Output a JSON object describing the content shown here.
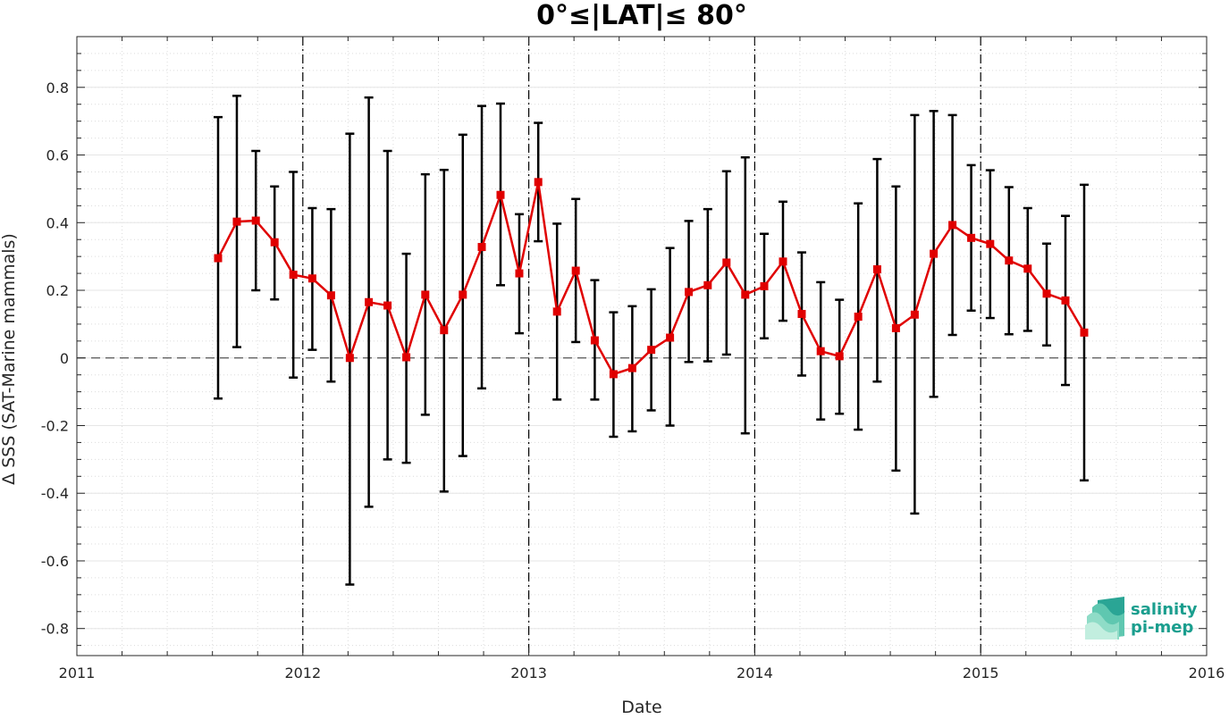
{
  "title": "0°≤|LAT|≤ 80°",
  "logo": {
    "line1": "salinity",
    "line2": "pi-mep",
    "color": "#1a9e8e"
  },
  "chart_data": {
    "type": "line",
    "title": "0°≤|LAT|≤ 80°",
    "xlabel": "Date",
    "ylabel": "Δ SSS (SAT-Marine mammals)",
    "xlim": [
      2011,
      2016
    ],
    "ylim": [
      -0.88,
      0.95
    ],
    "x_ticks": [
      2011,
      2012,
      2013,
      2014,
      2015,
      2016
    ],
    "x_tick_labels": [
      "2011",
      "2012",
      "2013",
      "2014",
      "2015",
      "2016"
    ],
    "y_ticks": [
      -0.8,
      -0.6,
      -0.4,
      -0.2,
      0,
      0.2,
      0.4,
      0.6,
      0.8
    ],
    "y_tick_labels": [
      "-0.8",
      "-0.6",
      "-0.4",
      "-0.2",
      "0",
      "0.2",
      "0.4",
      "0.6",
      "0.8"
    ],
    "grid": true,
    "year_boundaries": [
      2012,
      2013,
      2014,
      2015
    ],
    "zero_line": 0,
    "series": [
      {
        "color": "#e00000",
        "marker": "square",
        "errorbar_color": "#000000",
        "x": [
          2011.625,
          2011.708,
          2011.792,
          2011.875,
          2011.958,
          2012.042,
          2012.125,
          2012.208,
          2012.292,
          2012.375,
          2012.458,
          2012.542,
          2012.625,
          2012.708,
          2012.792,
          2012.875,
          2012.958,
          2013.042,
          2013.125,
          2013.208,
          2013.292,
          2013.375,
          2013.458,
          2013.542,
          2013.625,
          2013.708,
          2013.792,
          2013.875,
          2013.958,
          2014.042,
          2014.125,
          2014.208,
          2014.292,
          2014.375,
          2014.458,
          2014.542,
          2014.625,
          2014.708,
          2014.792,
          2014.875,
          2014.958,
          2015.042,
          2015.125,
          2015.208,
          2015.292,
          2015.375,
          2015.458
        ],
        "y": [
          0.295,
          0.403,
          0.406,
          0.342,
          0.246,
          0.235,
          0.185,
          0.0,
          0.165,
          0.155,
          0.002,
          0.187,
          0.082,
          0.187,
          0.328,
          0.482,
          0.25,
          0.52,
          0.137,
          0.258,
          0.052,
          -0.048,
          -0.03,
          0.024,
          0.06,
          0.195,
          0.215,
          0.282,
          0.187,
          0.212,
          0.285,
          0.13,
          0.02,
          0.005,
          0.122,
          0.262,
          0.088,
          0.128,
          0.308,
          0.393,
          0.355,
          0.337,
          0.288,
          0.264,
          0.19,
          0.17,
          0.075
        ],
        "y_low": [
          -0.12,
          0.032,
          0.2,
          0.173,
          -0.058,
          0.024,
          -0.07,
          -0.67,
          -0.44,
          -0.3,
          -0.31,
          -0.168,
          -0.395,
          -0.29,
          -0.09,
          0.215,
          0.073,
          0.345,
          -0.123,
          0.047,
          -0.123,
          -0.233,
          -0.217,
          -0.155,
          -0.2,
          -0.012,
          -0.01,
          0.01,
          -0.223,
          0.058,
          0.11,
          -0.052,
          -0.182,
          -0.165,
          -0.212,
          -0.07,
          -0.333,
          -0.46,
          -0.115,
          0.068,
          0.14,
          0.118,
          0.07,
          0.08,
          0.037,
          -0.08,
          -0.362
        ],
        "y_high": [
          0.712,
          0.775,
          0.612,
          0.507,
          0.55,
          0.443,
          0.44,
          0.663,
          0.77,
          0.612,
          0.308,
          0.543,
          0.556,
          0.66,
          0.745,
          0.752,
          0.425,
          0.695,
          0.397,
          0.47,
          0.23,
          0.135,
          0.153,
          0.203,
          0.325,
          0.405,
          0.44,
          0.552,
          0.593,
          0.367,
          0.462,
          0.312,
          0.224,
          0.172,
          0.457,
          0.588,
          0.507,
          0.718,
          0.73,
          0.718,
          0.57,
          0.555,
          0.505,
          0.443,
          0.338,
          0.42,
          0.512
        ]
      }
    ]
  }
}
